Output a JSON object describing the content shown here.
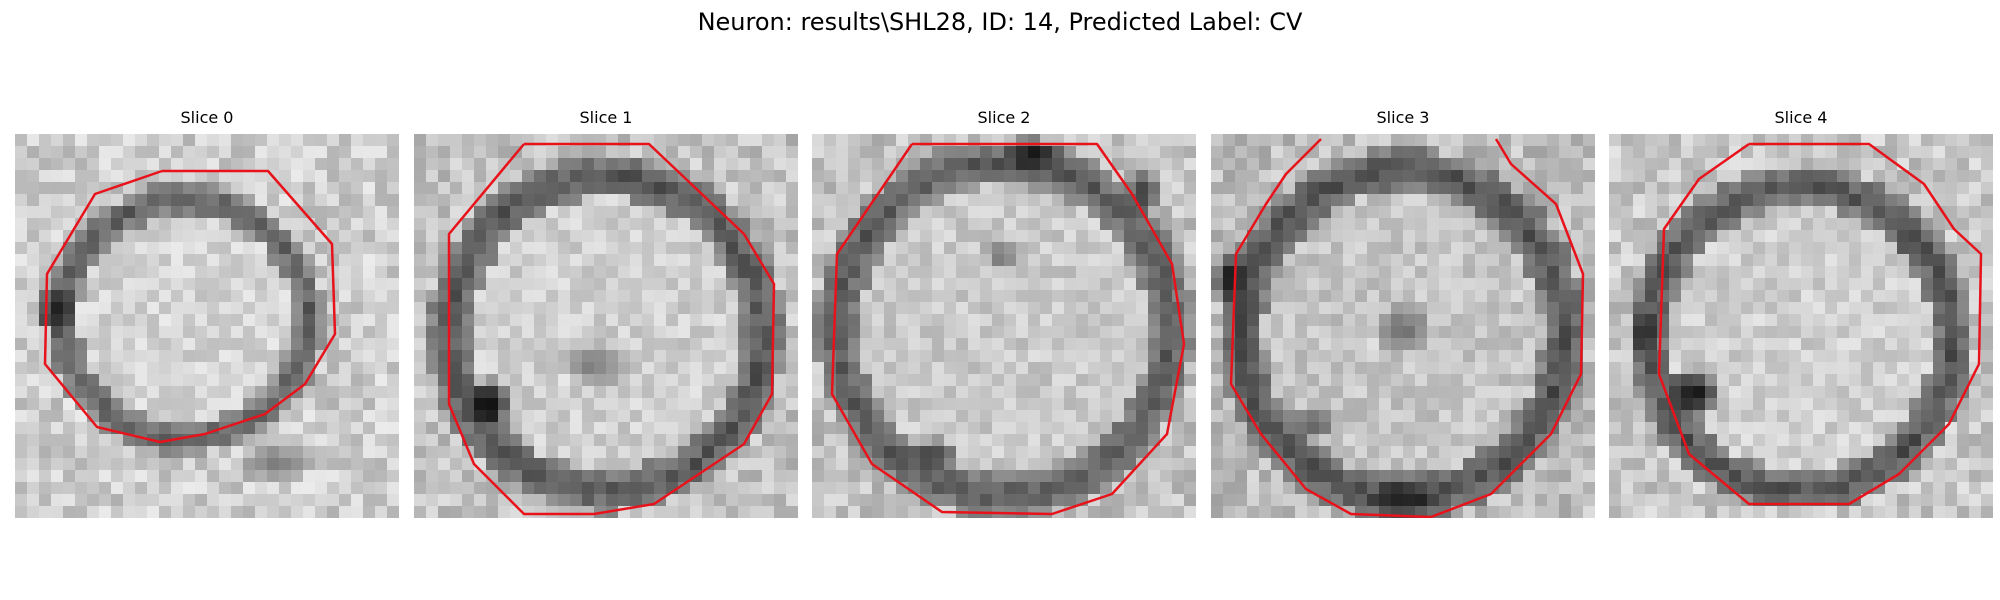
{
  "figure": {
    "title": "Neuron: results\\SHL28, ID: 14, Predicted Label: CV"
  },
  "colors": {
    "contour": "#e8121b",
    "background": "#ffffff",
    "colormap": "gray"
  },
  "panels": [
    {
      "title": "Slice 0"
    },
    {
      "title": "Slice 1"
    },
    {
      "title": "Slice 2"
    },
    {
      "title": "Slice 3"
    },
    {
      "title": "Slice 4"
    }
  ]
}
